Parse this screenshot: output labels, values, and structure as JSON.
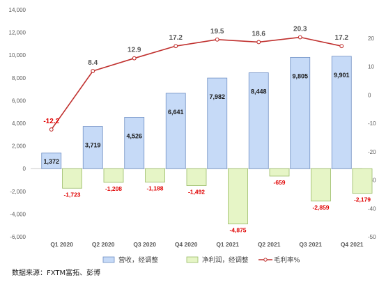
{
  "chart_data": {
    "type": "bar",
    "categories": [
      "Q1 2020",
      "Q2 2020",
      "Q3 2020",
      "Q4 2020",
      "Q1 2021",
      "Q2 2021",
      "Q3 2021",
      "Q4 2021"
    ],
    "series": [
      {
        "name": "营收，经调整",
        "kind": "bar",
        "axis": "left",
        "values": [
          1372,
          3719,
          4526,
          6641,
          7982,
          8448,
          9805,
          9901
        ],
        "labels": [
          "1,372",
          "3,719",
          "4,526",
          "6,641",
          "7,982",
          "8,448",
          "9,805",
          "9,901"
        ],
        "fill": "#c6daf7",
        "stroke": "#6f8fc4"
      },
      {
        "name": "净利润，经调整",
        "kind": "bar",
        "axis": "left",
        "values": [
          -1723,
          -1208,
          -1188,
          -1492,
          -4875,
          -659,
          -2859,
          -2179
        ],
        "labels": [
          "-1,723",
          "-1,208",
          "-1,188",
          "-1,492",
          "-4,875",
          "-659",
          "-2,859",
          "-2,179"
        ],
        "fill": "#e6f5c6",
        "stroke": "#99bb66"
      },
      {
        "name": "毛利率%",
        "kind": "line",
        "axis": "right",
        "values": [
          -12.2,
          8.4,
          12.9,
          17.2,
          19.5,
          18.6,
          20.3,
          17.2
        ],
        "labels": [
          "-12.2",
          "8.4",
          "12.9",
          "17.2",
          "19.5",
          "18.6",
          "20.3",
          "17.2"
        ],
        "color": "#c0302e"
      }
    ],
    "ylim_left": [
      -6000,
      14000
    ],
    "yticks_left": [
      "-6,000",
      "-4,000",
      "-2,000",
      "0",
      "2,000",
      "4,000",
      "6,000",
      "8,000",
      "10,000",
      "12,000",
      "14,000"
    ],
    "ylim_right": [
      -50,
      30
    ],
    "yticks_right": [
      "-50",
      "-40",
      "-30",
      "-20",
      "-10",
      "0",
      "10",
      "20"
    ],
    "legend_position": "bottom",
    "grid": false,
    "label_colors": {
      "bar_label": "#1a1a1a",
      "negative_label": "#e00000",
      "line_label_first": "#e00000",
      "line_label": "#555555"
    }
  },
  "source_note": "数据来源：FXTM富拓、彭博"
}
